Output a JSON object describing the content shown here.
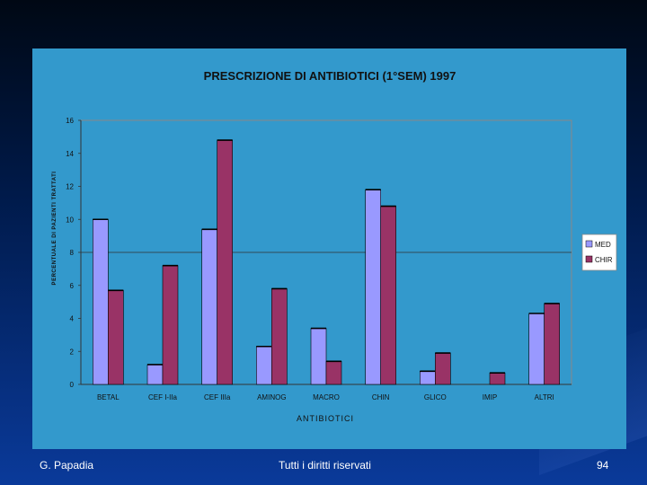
{
  "footer": {
    "author": "G. Papadia",
    "rights": "Tutti i diritti riservati",
    "page": "94"
  },
  "colors": {
    "panel_bg": "#3399cc",
    "plot_bg": "#3399cc",
    "series_med": "#9999ff",
    "series_chir": "#993366",
    "slide_bg_dark": "#000814",
    "slide_bg_blue": "#0a3a9a"
  },
  "chart_data": {
    "type": "bar",
    "title": "PRESCRIZIONE DI ANTIBIOTICI (1°SEM) 1997",
    "xlabel": "ANTIBIOTICI",
    "ylabel": "PERCENTUALE DI PAZIENTI TRATTATI",
    "categories": [
      "BETAL",
      "CEF I-IIa",
      "CEF IIIa",
      "AMINOG",
      "MACRO",
      "CHIN",
      "GLICO",
      "IMIP",
      "ALTRI"
    ],
    "series": [
      {
        "name": "MED",
        "values": [
          10.0,
          1.2,
          9.4,
          2.3,
          3.4,
          11.8,
          0.8,
          0,
          4.3
        ]
      },
      {
        "name": "CHIR",
        "values": [
          5.7,
          7.2,
          14.8,
          5.8,
          1.4,
          10.8,
          1.9,
          0.7,
          4.9
        ]
      }
    ],
    "ylim": [
      0,
      16
    ],
    "yticks": [
      0,
      2,
      4,
      6,
      8,
      10,
      12,
      14,
      16
    ],
    "grid": "single line at 8",
    "legend": "right"
  }
}
